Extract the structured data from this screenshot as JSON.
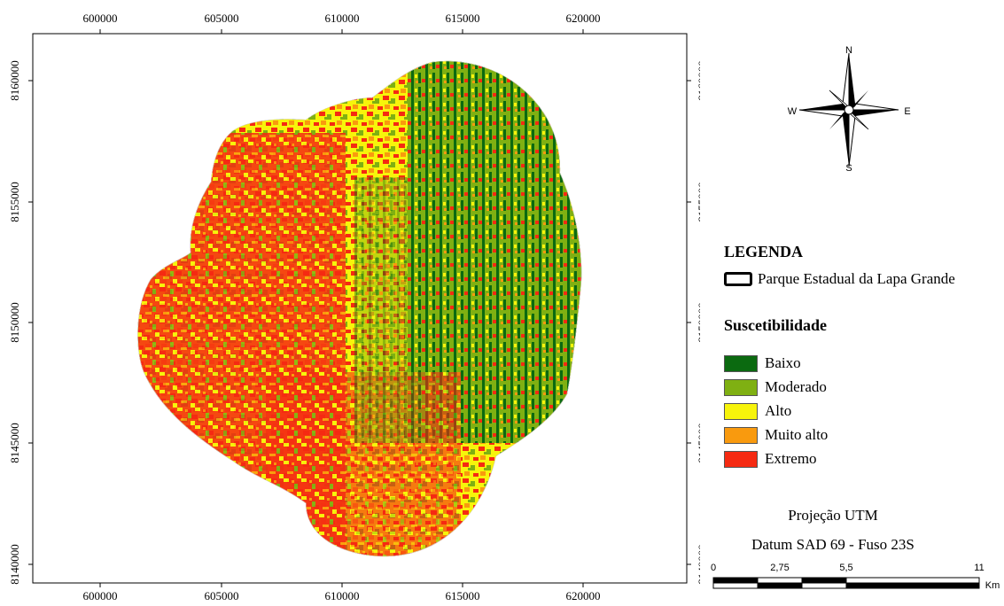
{
  "map": {
    "x_ticks": [
      "600000",
      "605000",
      "610000",
      "615000",
      "620000"
    ],
    "y_ticks": [
      "8160000",
      "8155000",
      "8150000",
      "8145000",
      "8140000"
    ]
  },
  "compass": {
    "n": "N",
    "s": "S",
    "e": "E",
    "w": "W"
  },
  "legend": {
    "title": "LEGENDA",
    "park_label": "Parque Estadual da Lapa Grande",
    "susc_title": "Suscetibilidade",
    "classes": [
      {
        "label": "Baixo",
        "color": "#0b6a10"
      },
      {
        "label": "Moderado",
        "color": "#7fb012"
      },
      {
        "label": "Alto",
        "color": "#f7f40b"
      },
      {
        "label": "Muito alto",
        "color": "#f99a0e"
      },
      {
        "label": "Extremo",
        "color": "#f52a12"
      }
    ]
  },
  "projection": {
    "line1": "Projeção UTM",
    "line2": "Datum SAD 69 - Fuso 23S"
  },
  "scalebar": {
    "labels": [
      "0",
      "2,75",
      "5,5",
      "11"
    ],
    "unit": "Km"
  }
}
